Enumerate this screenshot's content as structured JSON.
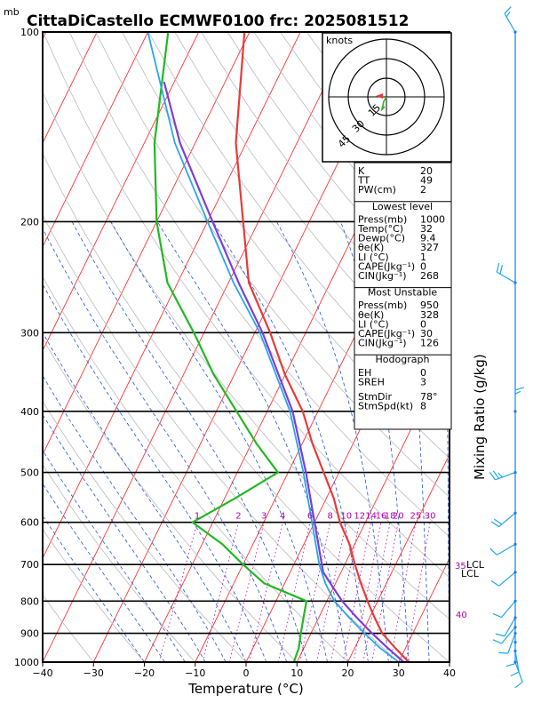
{
  "header": {
    "unit_top": "mb",
    "title": "CittaDiCastello ECMWF0100  frc: 2025081512"
  },
  "axes": {
    "xlabel": "Temperature (°C)",
    "right_label": "Mixing Ratio (g/kg)"
  },
  "hodograph": {
    "unit": "knots",
    "rings": [
      "15",
      "30",
      "45"
    ]
  },
  "stats": {
    "top": [
      {
        "k": "K",
        "v": "20"
      },
      {
        "k": "TT",
        "v": "49"
      },
      {
        "k": "PW(cm)",
        "v": "2"
      }
    ],
    "lowest_title": "Lowest level",
    "lowest": [
      {
        "k": "Press(mb)",
        "v": "1000"
      },
      {
        "k": "Temp(°C)",
        "v": "32"
      },
      {
        "k": "Dewp(°C)",
        "v": "9.4"
      },
      {
        "k": "θe(K)",
        "v": "327"
      },
      {
        "k": "LI (°C)",
        "v": "1"
      },
      {
        "k": "CAPE(Jkg⁻¹)",
        "v": "0"
      },
      {
        "k": "CIN(Jkg⁻¹)",
        "v": "268"
      }
    ],
    "mu_title": "Most Unstable",
    "mu": [
      {
        "k": "Press(mb)",
        "v": "950"
      },
      {
        "k": "θe(K)",
        "v": "328"
      },
      {
        "k": "LI (°C)",
        "v": "0"
      },
      {
        "k": "CAPE(Jkg⁻¹)",
        "v": "30"
      },
      {
        "k": "CIN(Jkg⁻¹)",
        "v": "126"
      }
    ],
    "hodo_title": "Hodograph",
    "hodo": [
      {
        "k": "EH",
        "v": "0"
      },
      {
        "k": "SREH",
        "v": "3"
      },
      {
        "k": "StmDir",
        "v": "78°"
      },
      {
        "k": "StmSpd(kt)",
        "v": "8"
      }
    ]
  },
  "annotations": {
    "lcl_label": "LCL",
    "lcl_label2": "LCL",
    "mix_40": "40",
    "mix_35": "35"
  },
  "colors": {
    "temperature": "#e83a3a",
    "dewpoint": "#22b822",
    "parcel": "#7b3fd6",
    "wetbulb": "#2aa6e8",
    "isotherm": "#ff3333",
    "dry_adiabat": "#bbbbbb",
    "moist_adiabat": "#2255dd",
    "mixing_ratio": "#b000b0",
    "wind_barb": "#1ea7e8"
  },
  "chart_data": {
    "type": "line",
    "chart_kind": "skew-T log-P",
    "title": "CittaDiCastello ECMWF0100  frc: 2025081512",
    "xlabel": "Temperature (°C)",
    "ylabel": "mb",
    "xlim": [
      -40,
      40
    ],
    "ylim": [
      1000,
      100
    ],
    "y_scale": "log",
    "pressure_ticks": [
      100,
      200,
      300,
      400,
      500,
      600,
      700,
      800,
      900,
      1000
    ],
    "temperature_ticks": [
      -40,
      -30,
      -20,
      -10,
      0,
      10,
      20,
      30,
      40
    ],
    "mixing_ratio_labels": [
      "1",
      "2",
      "3",
      "4",
      "6",
      "8",
      "10",
      "12",
      "14",
      "16",
      "18",
      "20",
      "25",
      "30"
    ],
    "mixing_ratio_values": [
      1,
      2,
      3,
      4,
      6,
      8,
      10,
      12,
      14,
      16,
      18,
      20,
      25,
      30
    ],
    "series": [
      {
        "name": "Temperature",
        "points": [
          {
            "p": 1000,
            "t": 32
          },
          {
            "p": 950,
            "t": 28
          },
          {
            "p": 900,
            "t": 24
          },
          {
            "p": 850,
            "t": 21
          },
          {
            "p": 800,
            "t": 18
          },
          {
            "p": 750,
            "t": 15
          },
          {
            "p": 700,
            "t": 12
          },
          {
            "p": 650,
            "t": 9
          },
          {
            "p": 600,
            "t": 5
          },
          {
            "p": 550,
            "t": 1.5
          },
          {
            "p": 500,
            "t": -3
          },
          {
            "p": 450,
            "t": -8
          },
          {
            "p": 400,
            "t": -13
          },
          {
            "p": 350,
            "t": -20
          },
          {
            "p": 300,
            "t": -27
          },
          {
            "p": 250,
            "t": -36
          },
          {
            "p": 200,
            "t": -43
          },
          {
            "p": 150,
            "t": -52
          },
          {
            "p": 100,
            "t": -61
          }
        ]
      },
      {
        "name": "Dewpoint",
        "points": [
          {
            "p": 1000,
            "t": 9.4
          },
          {
            "p": 950,
            "t": 9
          },
          {
            "p": 900,
            "t": 8
          },
          {
            "p": 850,
            "t": 7
          },
          {
            "p": 800,
            "t": 6
          },
          {
            "p": 750,
            "t": -4
          },
          {
            "p": 700,
            "t": -10
          },
          {
            "p": 650,
            "t": -16
          },
          {
            "p": 600,
            "t": -24
          },
          {
            "p": 550,
            "t": -18
          },
          {
            "p": 500,
            "t": -12
          },
          {
            "p": 450,
            "t": -19
          },
          {
            "p": 400,
            "t": -26
          },
          {
            "p": 350,
            "t": -34
          },
          {
            "p": 300,
            "t": -42
          },
          {
            "p": 250,
            "t": -52
          },
          {
            "p": 200,
            "t": -60
          },
          {
            "p": 150,
            "t": -68
          },
          {
            "p": 100,
            "t": -76
          }
        ]
      },
      {
        "name": "Parcel",
        "points": [
          {
            "p": 1000,
            "t": 31
          },
          {
            "p": 950,
            "t": 26.5
          },
          {
            "p": 900,
            "t": 22
          },
          {
            "p": 850,
            "t": 17.5
          },
          {
            "p": 800,
            "t": 13
          },
          {
            "p": 750,
            "t": 9
          },
          {
            "p": 720,
            "t": 6.5
          },
          {
            "p": 700,
            "t": 5.5
          },
          {
            "p": 600,
            "t": 0
          },
          {
            "p": 500,
            "t": -6.5
          },
          {
            "p": 400,
            "t": -15
          },
          {
            "p": 300,
            "t": -28.5
          },
          {
            "p": 250,
            "t": -38
          },
          {
            "p": 200,
            "t": -49
          },
          {
            "p": 150,
            "t": -63
          },
          {
            "p": 120,
            "t": -72
          }
        ]
      },
      {
        "name": "Wet-bulb",
        "points": [
          {
            "p": 1000,
            "t": 30
          },
          {
            "p": 950,
            "t": 25
          },
          {
            "p": 900,
            "t": 20.5
          },
          {
            "p": 850,
            "t": 16
          },
          {
            "p": 800,
            "t": 11.5
          },
          {
            "p": 750,
            "t": 8
          },
          {
            "p": 700,
            "t": 5
          },
          {
            "p": 600,
            "t": -0.5
          },
          {
            "p": 500,
            "t": -7
          },
          {
            "p": 400,
            "t": -15.5
          },
          {
            "p": 300,
            "t": -29
          },
          {
            "p": 250,
            "t": -39
          },
          {
            "p": 200,
            "t": -50
          },
          {
            "p": 150,
            "t": -64
          },
          {
            "p": 100,
            "t": -80
          }
        ]
      }
    ],
    "wind_barbs": [
      {
        "p": 100,
        "dir": 330,
        "speed_kt": 15
      },
      {
        "p": 250,
        "dir": 300,
        "speed_kt": 20
      },
      {
        "p": 400,
        "dir": 0,
        "speed_kt": 15
      },
      {
        "p": 500,
        "dir": 250,
        "speed_kt": 25
      },
      {
        "p": 580,
        "dir": 230,
        "speed_kt": 20
      },
      {
        "p": 650,
        "dir": 240,
        "speed_kt": 10
      },
      {
        "p": 720,
        "dir": 230,
        "speed_kt": 10
      },
      {
        "p": 800,
        "dir": 220,
        "speed_kt": 10
      },
      {
        "p": 850,
        "dir": 210,
        "speed_kt": 10
      },
      {
        "p": 880,
        "dir": 220,
        "speed_kt": 10
      },
      {
        "p": 900,
        "dir": 200,
        "speed_kt": 10
      },
      {
        "p": 930,
        "dir": 180,
        "speed_kt": 10
      },
      {
        "p": 960,
        "dir": 170,
        "speed_kt": 10
      },
      {
        "p": 1000,
        "dir": 160,
        "speed_kt": 10
      }
    ]
  }
}
